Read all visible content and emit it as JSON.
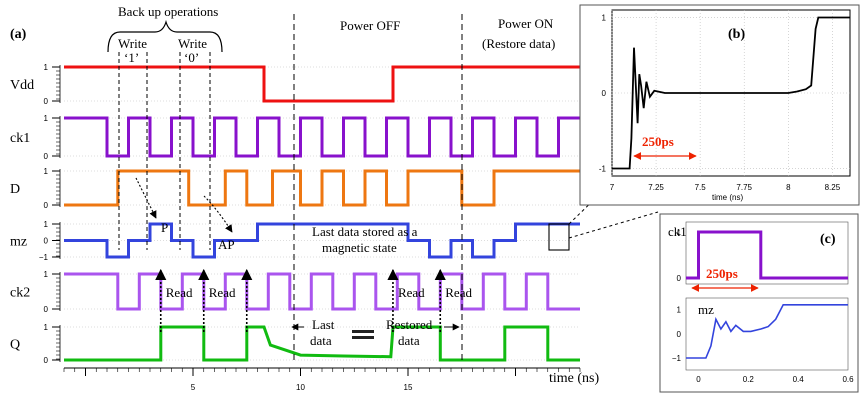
{
  "panel_a": {
    "tag": "(a)",
    "backup_title": "Back up operations",
    "write1": "Write",
    "write1_val": "‘1’",
    "write0": "Write",
    "write0_val": "‘0’",
    "power_off": "Power OFF",
    "power_on": "Power ON",
    "restore": "(Restore data)",
    "p_label": "P",
    "ap_label": "AP",
    "last_stored_1": "Last data stored as a",
    "last_stored_2": "magnetic state",
    "read": "Read",
    "last_data_1": "Last",
    "last_data_2": "data",
    "restored_1": "Restored",
    "restored_2": "data",
    "xaxis_title": "time (ns)"
  },
  "panel_b": {
    "tag": "(b)",
    "marker": "250ps",
    "xlabel": "time (ns)"
  },
  "panel_c": {
    "tag": "(c)",
    "ck1_label": "ck1",
    "mz_label": "mz",
    "marker": "250ps"
  },
  "colors": {
    "Vdd": "#ee1111",
    "ck1": "#8811cc",
    "D": "#ee7711",
    "mz": "#3344dd",
    "ck2": "#aa55ee",
    "Q": "#11bb11",
    "marker": "#ee2200"
  },
  "chart_data": [
    {
      "type": "line",
      "panel": "(a)",
      "xlabel": "time (ns)",
      "xlim": [
        -1,
        23
      ],
      "xticks": [
        5,
        10,
        15
      ],
      "power_off_at": 8.3,
      "power_on_at": 14.3,
      "series": [
        {
          "name": "Vdd",
          "yticks": [
            1,
            0
          ],
          "x": [
            -1,
            8.3,
            8.3,
            14.3,
            14.3,
            23
          ],
          "y": [
            1,
            1,
            0,
            0,
            1,
            1
          ]
        },
        {
          "name": "ck1",
          "yticks": [
            1,
            0
          ],
          "x": [
            -1,
            1.0,
            1.0,
            2.0,
            2.0,
            3.0,
            3.0,
            4.0,
            4.0,
            5.0,
            5.0,
            6.0,
            6.0,
            7.0,
            7.0,
            8.0,
            8.0,
            9.0,
            9.0,
            10.0,
            10.0,
            11.0,
            11.0,
            12.0,
            12.0,
            13.0,
            13.0,
            14.0,
            14.0,
            15.0,
            15.0,
            16.0,
            16.0,
            17.0,
            17.0,
            18.0,
            18.0,
            19.0,
            19.0,
            20.0,
            20.0,
            21.0,
            21.0,
            22.0,
            22.0,
            23
          ],
          "y": [
            1,
            1,
            0,
            0,
            1,
            1,
            0,
            0,
            1,
            1,
            0,
            0,
            1,
            1,
            0,
            0,
            1,
            1,
            0,
            0,
            1,
            1,
            0,
            0,
            1,
            1,
            0,
            0,
            1,
            1,
            0,
            0,
            1,
            1,
            0,
            0,
            1,
            1,
            0,
            0,
            1,
            1,
            0,
            0,
            1,
            1
          ]
        },
        {
          "name": "D",
          "yticks": [
            1,
            0
          ],
          "x": [
            -1,
            1.5,
            1.5,
            4.8,
            4.8,
            6.5,
            6.5,
            7.5,
            7.5,
            8.7,
            8.7,
            10.0,
            10.0,
            11.0,
            11.0,
            12.0,
            12.0,
            13.0,
            13.0,
            14.0,
            14.0,
            15.0,
            15.0,
            17.5,
            17.5,
            19.0,
            19.0,
            23
          ],
          "y": [
            0,
            0,
            1,
            1,
            0,
            0,
            1,
            1,
            0,
            0,
            1,
            1,
            0,
            0,
            1,
            1,
            0,
            0,
            1,
            1,
            0,
            0,
            1,
            1,
            0,
            0,
            1,
            1
          ]
        },
        {
          "name": "mz",
          "yticks": [
            1,
            0,
            -1
          ],
          "x": [
            -1,
            1.0,
            1.0,
            2.0,
            2.0,
            3.0,
            3.0,
            4.0,
            4.0,
            5.0,
            5.0,
            6.0,
            6.0,
            7.0,
            7.0,
            8.0,
            8.0,
            15.0,
            15.0,
            16.0,
            16.0,
            17.0,
            17.0,
            18.0,
            18.0,
            19.0,
            19.0,
            20.0,
            20.0,
            21.0,
            21.0,
            23
          ],
          "y": [
            0,
            0,
            -1,
            -1,
            0,
            0,
            1,
            1,
            0,
            0,
            -1,
            -1,
            0,
            0,
            0,
            0,
            1,
            1,
            0,
            0,
            -1,
            -1,
            0,
            0,
            -1,
            -1,
            0,
            0,
            1,
            1,
            1,
            1
          ]
        },
        {
          "name": "ck2",
          "yticks": [
            1,
            0
          ],
          "x": [
            -1,
            1.5,
            1.5,
            2.5,
            2.5,
            3.5,
            3.5,
            4.5,
            4.5,
            5.5,
            5.5,
            6.5,
            6.5,
            7.5,
            7.5,
            8.5,
            8.5,
            9.5,
            9.5,
            10.5,
            10.5,
            11.5,
            11.5,
            12.5,
            12.5,
            13.5,
            13.5,
            14.5,
            14.5,
            15.5,
            15.5,
            16.5,
            16.5,
            17.5,
            17.5,
            18.5,
            18.5,
            19.5,
            19.5,
            20.5,
            20.5,
            21.5,
            21.5,
            23
          ],
          "y": [
            1,
            1,
            0,
            0,
            1,
            1,
            0,
            0,
            1,
            1,
            0,
            0,
            1,
            1,
            0,
            0,
            1,
            1,
            0,
            0,
            1,
            1,
            0,
            0,
            1,
            1,
            0,
            0,
            1,
            1,
            0,
            0,
            1,
            1,
            0,
            0,
            1,
            1,
            0,
            0,
            1,
            1,
            0,
            0
          ]
        },
        {
          "name": "Q",
          "yticks": [
            1,
            0
          ],
          "x": [
            -1,
            3.5,
            3.5,
            5.5,
            5.5,
            7.5,
            7.5,
            8.3,
            8.6,
            10.0,
            12.0,
            14.2,
            14.3,
            16.5,
            16.5,
            19.5,
            19.5,
            21.5,
            21.5,
            23
          ],
          "y": [
            0,
            0,
            1,
            1,
            0,
            0,
            1,
            1,
            0.45,
            0.15,
            0.12,
            0.1,
            1,
            1,
            0,
            0,
            1,
            1,
            0,
            0
          ]
        }
      ]
    },
    {
      "type": "line",
      "panel": "(b)",
      "xlabel": "time (ns)",
      "xlim": [
        7.0,
        8.35
      ],
      "ylim": [
        -1.1,
        1.1
      ],
      "xticks": [
        7.0,
        7.25,
        7.5,
        7.75,
        8.0,
        8.25
      ],
      "yticks": [
        1,
        0,
        -1
      ],
      "series": [
        {
          "name": "mz",
          "x": [
            7.0,
            7.1,
            7.11,
            7.125,
            7.135,
            7.145,
            7.155,
            7.165,
            7.18,
            7.195,
            7.215,
            7.24,
            7.3,
            8.0,
            8.05,
            8.1,
            8.13,
            8.155,
            8.17,
            8.35
          ],
          "y": [
            -1,
            -1,
            -0.6,
            0.6,
            0.1,
            -0.4,
            0.25,
            0.1,
            -0.2,
            0.15,
            -0.05,
            0.03,
            0,
            0,
            0.02,
            0.05,
            0.1,
            0.85,
            1,
            1
          ]
        }
      ]
    },
    {
      "type": "line",
      "panel": "(c)",
      "xlim": [
        -0.05,
        0.6
      ],
      "xticks": [
        0,
        0.2,
        0.4,
        0.6
      ],
      "series": [
        {
          "name": "ck1",
          "yticks": [
            1,
            0
          ],
          "x": [
            -0.05,
            0.0,
            0.0,
            0.25,
            0.25,
            0.6
          ],
          "y": [
            0,
            0,
            1,
            1,
            0,
            0
          ]
        },
        {
          "name": "mz",
          "yticks": [
            1,
            0,
            -1
          ],
          "x": [
            -0.05,
            0.03,
            0.05,
            0.07,
            0.09,
            0.11,
            0.13,
            0.15,
            0.18,
            0.21,
            0.25,
            0.28,
            0.31,
            0.34,
            0.6
          ],
          "y": [
            -1,
            -1,
            -0.5,
            0.6,
            0.2,
            0.5,
            0.1,
            0.35,
            0.1,
            0.1,
            0.2,
            0.3,
            0.6,
            1.2,
            1.2
          ]
        }
      ]
    }
  ]
}
